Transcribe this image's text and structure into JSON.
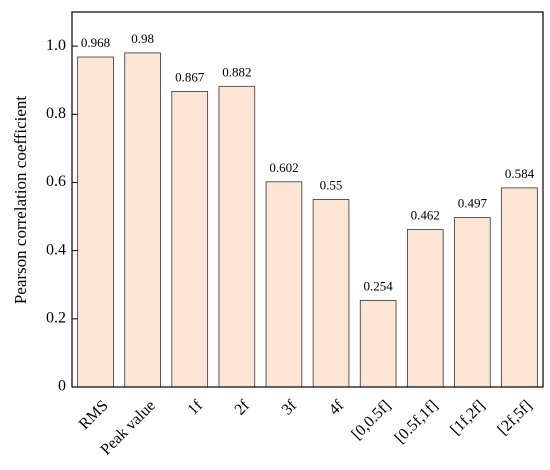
{
  "chart_data": {
    "type": "bar",
    "ylabel": "Pearson correlation coefficient",
    "categories": [
      "RMS",
      "Peak value",
      "1f",
      "2f",
      "3f",
      "4f",
      "[0,0.5f]",
      "[0.5f,1f]",
      "[1f,2f]",
      "[2f,5f]"
    ],
    "values": [
      0.968,
      0.98,
      0.867,
      0.882,
      0.602,
      0.55,
      0.254,
      0.462,
      0.497,
      0.584
    ],
    "color": "#fde5d6",
    "ylim": [
      0,
      1.1
    ],
    "yticks": [
      0,
      0.2,
      0.4,
      0.6,
      0.8,
      {
        "value": 1,
        "label": "1.0"
      }
    ]
  }
}
